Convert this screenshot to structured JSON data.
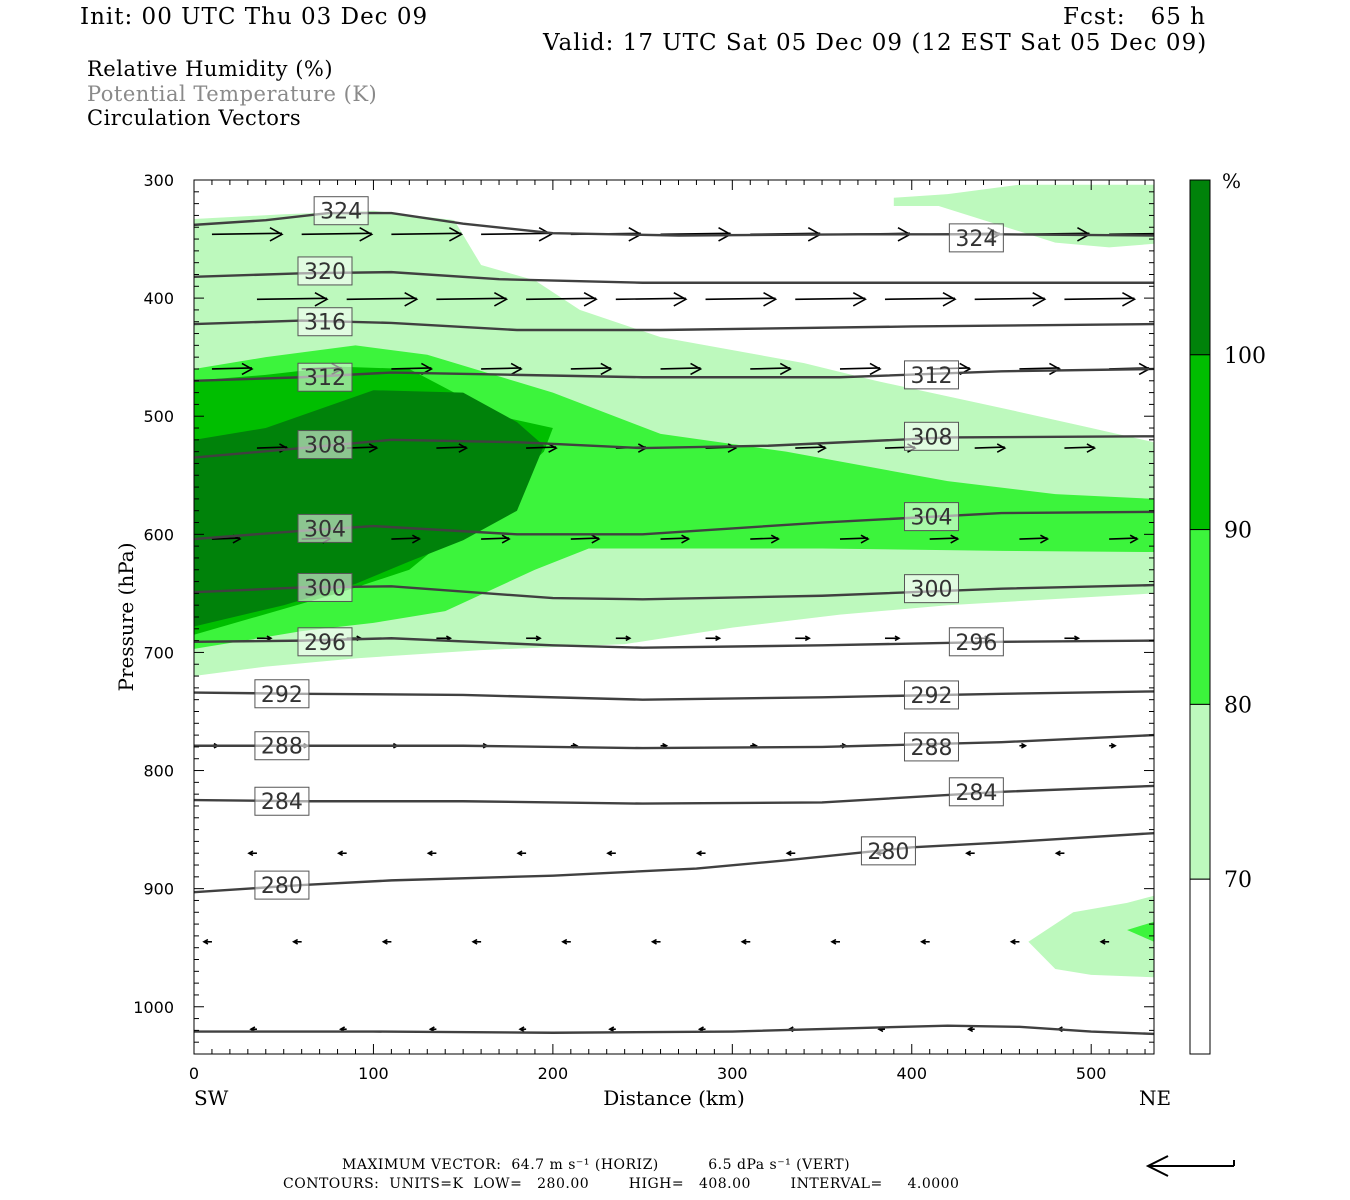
{
  "header": {
    "init": "Init: 00 UTC Thu 03 Dec 09",
    "fcst": "Fcst:   65 h",
    "valid": "Valid: 17 UTC Sat 05 Dec 09 (12 EST Sat 05 Dec 09)"
  },
  "legend_lines": {
    "rh": "Relative Humidity (%)",
    "theta": "Potential Temperature (K)",
    "vectors": "Circulation Vectors"
  },
  "colors": {
    "rh70": "#bdf9bd",
    "rh80": "#3cf43c",
    "rh90": "#00be00",
    "rh100": "#00820a",
    "contour": "#404040",
    "theta_text": "#8a8a8a"
  },
  "footer": {
    "max_vector": "MAXIMUM VECTOR:  64.7 m s⁻¹ (HORIZ)          6.5 dPa s⁻¹ (VERT)",
    "contours": "CONTOURS:  UNITS=K  LOW=   280.00        HIGH=   408.00        INTERVAL=     4.0000"
  },
  "chart_data": {
    "type": "cross-section",
    "xlabel": "Distance (km)",
    "ylabel": "Pressure (hPa)",
    "x_ticks": [
      0,
      100,
      200,
      300,
      400,
      500
    ],
    "xlim": [
      0,
      535
    ],
    "y_ticks": [
      300,
      400,
      500,
      600,
      700,
      800,
      900,
      1000
    ],
    "ylim": [
      1040,
      300
    ],
    "x_end_labels": {
      "left": "SW",
      "right": "NE"
    },
    "colorbar": {
      "unit": "%",
      "levels": [
        70,
        80,
        90,
        100
      ]
    },
    "theta_contours": [
      {
        "label": "324",
        "points": [
          [
            0,
            338
          ],
          [
            40,
            334
          ],
          [
            75,
            328
          ],
          [
            110,
            328
          ],
          [
            150,
            337
          ],
          [
            200,
            345
          ],
          [
            270,
            347
          ],
          [
            370,
            346
          ],
          [
            450,
            346
          ],
          [
            535,
            347
          ]
        ],
        "label_at": [
          [
            82,
            326
          ],
          [
            436,
            349
          ]
        ]
      },
      {
        "label": "320",
        "points": [
          [
            0,
            382
          ],
          [
            60,
            379
          ],
          [
            110,
            378
          ],
          [
            170,
            384
          ],
          [
            250,
            387
          ],
          [
            380,
            387
          ],
          [
            535,
            387
          ]
        ],
        "label_at": [
          [
            73,
            377
          ]
        ]
      },
      {
        "label": "316",
        "points": [
          [
            0,
            422
          ],
          [
            60,
            419
          ],
          [
            110,
            421
          ],
          [
            180,
            427
          ],
          [
            260,
            427
          ],
          [
            400,
            424
          ],
          [
            535,
            422
          ]
        ],
        "label_at": [
          [
            73,
            420
          ]
        ]
      },
      {
        "label": "312",
        "points": [
          [
            0,
            470
          ],
          [
            60,
            467
          ],
          [
            110,
            463
          ],
          [
            180,
            465
          ],
          [
            250,
            467
          ],
          [
            360,
            467
          ],
          [
            450,
            462
          ],
          [
            535,
            460
          ]
        ],
        "label_at": [
          [
            73,
            467
          ],
          [
            411,
            465
          ]
        ]
      },
      {
        "label": "308",
        "points": [
          [
            0,
            535
          ],
          [
            60,
            527
          ],
          [
            110,
            520
          ],
          [
            180,
            522
          ],
          [
            250,
            527
          ],
          [
            320,
            525
          ],
          [
            420,
            518
          ],
          [
            535,
            517
          ]
        ],
        "label_at": [
          [
            73,
            524
          ],
          [
            411,
            517
          ]
        ]
      },
      {
        "label": "304",
        "points": [
          [
            0,
            604
          ],
          [
            60,
            597
          ],
          [
            100,
            593
          ],
          [
            180,
            600
          ],
          [
            250,
            600
          ],
          [
            350,
            590
          ],
          [
            450,
            582
          ],
          [
            535,
            581
          ]
        ],
        "label_at": [
          [
            73,
            595
          ],
          [
            411,
            585
          ]
        ]
      },
      {
        "label": "300",
        "points": [
          [
            0,
            649
          ],
          [
            60,
            645
          ],
          [
            110,
            644
          ],
          [
            200,
            654
          ],
          [
            250,
            655
          ],
          [
            350,
            652
          ],
          [
            450,
            646
          ],
          [
            535,
            643
          ]
        ],
        "label_at": [
          [
            73,
            645
          ],
          [
            411,
            646
          ]
        ]
      },
      {
        "label": "296",
        "points": [
          [
            0,
            691
          ],
          [
            60,
            690
          ],
          [
            110,
            688
          ],
          [
            200,
            694
          ],
          [
            250,
            696
          ],
          [
            350,
            694
          ],
          [
            450,
            691
          ],
          [
            535,
            690
          ]
        ],
        "label_at": [
          [
            73,
            691
          ],
          [
            436,
            691
          ]
        ]
      },
      {
        "label": "292",
        "points": [
          [
            0,
            734
          ],
          [
            60,
            735
          ],
          [
            150,
            736
          ],
          [
            250,
            740
          ],
          [
            350,
            738
          ],
          [
            450,
            735
          ],
          [
            535,
            733
          ]
        ],
        "label_at": [
          [
            49,
            735
          ],
          [
            411,
            736
          ]
        ]
      },
      {
        "label": "288",
        "points": [
          [
            0,
            779
          ],
          [
            60,
            779
          ],
          [
            150,
            779
          ],
          [
            250,
            781
          ],
          [
            350,
            780
          ],
          [
            450,
            776
          ],
          [
            535,
            770
          ]
        ],
        "label_at": [
          [
            49,
            779
          ],
          [
            411,
            780
          ]
        ]
      },
      {
        "label": "284",
        "points": [
          [
            0,
            825
          ],
          [
            60,
            826
          ],
          [
            150,
            826
          ],
          [
            250,
            828
          ],
          [
            350,
            827
          ],
          [
            450,
            818
          ],
          [
            535,
            813
          ]
        ],
        "label_at": [
          [
            49,
            826
          ],
          [
            436,
            818
          ]
        ]
      },
      {
        "label": "280",
        "points": [
          [
            0,
            903
          ],
          [
            60,
            897
          ],
          [
            110,
            893
          ],
          [
            200,
            889
          ],
          [
            280,
            883
          ],
          [
            330,
            876
          ],
          [
            400,
            865
          ],
          [
            450,
            861
          ],
          [
            535,
            853
          ]
        ],
        "label_at": [
          [
            49,
            897
          ],
          [
            387,
            868
          ]
        ]
      },
      {
        "label": "",
        "points": [
          [
            0,
            1021
          ],
          [
            100,
            1021
          ],
          [
            200,
            1022
          ],
          [
            300,
            1021
          ],
          [
            370,
            1018
          ],
          [
            420,
            1016
          ],
          [
            460,
            1017
          ],
          [
            500,
            1021
          ],
          [
            535,
            1023
          ]
        ],
        "label_at": []
      }
    ],
    "rh_regions": [
      {
        "level": 70,
        "points": [
          [
            0,
            333
          ],
          [
            50,
            329
          ],
          [
            100,
            326
          ],
          [
            145,
            334
          ],
          [
            160,
            372
          ],
          [
            190,
            385
          ],
          [
            215,
            410
          ],
          [
            260,
            433
          ],
          [
            340,
            455
          ],
          [
            380,
            470
          ],
          [
            450,
            493
          ],
          [
            500,
            510
          ],
          [
            535,
            522
          ],
          [
            535,
            650
          ],
          [
            420,
            660
          ],
          [
            360,
            668
          ],
          [
            300,
            679
          ],
          [
            240,
            693
          ],
          [
            160,
            698
          ],
          [
            90,
            705
          ],
          [
            40,
            712
          ],
          [
            0,
            720
          ]
        ]
      },
      {
        "level": 70,
        "points": [
          [
            390,
            315
          ],
          [
            390,
            322
          ],
          [
            415,
            322
          ],
          [
            480,
            353
          ],
          [
            510,
            357
          ],
          [
            535,
            354
          ],
          [
            535,
            304
          ],
          [
            460,
            304
          ],
          [
            420,
            312
          ]
        ]
      },
      {
        "level": 70,
        "points": [
          [
            465,
            945
          ],
          [
            490,
            920
          ],
          [
            520,
            912
          ],
          [
            535,
            906
          ],
          [
            535,
            975
          ],
          [
            500,
            973
          ],
          [
            480,
            968
          ]
        ]
      },
      {
        "level": 80,
        "points": [
          [
            0,
            460
          ],
          [
            40,
            450
          ],
          [
            90,
            440
          ],
          [
            130,
            448
          ],
          [
            200,
            480
          ],
          [
            260,
            515
          ],
          [
            330,
            530
          ],
          [
            420,
            555
          ],
          [
            480,
            566
          ],
          [
            535,
            570
          ],
          [
            535,
            615
          ],
          [
            450,
            614
          ],
          [
            350,
            612
          ],
          [
            220,
            612
          ],
          [
            190,
            630
          ],
          [
            140,
            665
          ],
          [
            100,
            675
          ],
          [
            60,
            682
          ],
          [
            0,
            697
          ]
        ]
      },
      {
        "level": 80,
        "points": [
          [
            520,
            935
          ],
          [
            535,
            928
          ],
          [
            535,
            945
          ]
        ]
      },
      {
        "level": 90,
        "points": [
          [
            0,
            470
          ],
          [
            40,
            465
          ],
          [
            80,
            458
          ],
          [
            120,
            460
          ],
          [
            170,
            500
          ],
          [
            200,
            510
          ],
          [
            195,
            530
          ],
          [
            160,
            580
          ],
          [
            120,
            630
          ],
          [
            80,
            650
          ],
          [
            0,
            685
          ]
        ]
      },
      {
        "level": 100,
        "points": [
          [
            0,
            520
          ],
          [
            40,
            510
          ],
          [
            100,
            478
          ],
          [
            150,
            480
          ],
          [
            180,
            505
          ],
          [
            195,
            525
          ],
          [
            180,
            580
          ],
          [
            150,
            605
          ],
          [
            120,
            623
          ],
          [
            90,
            642
          ],
          [
            50,
            660
          ],
          [
            0,
            678
          ]
        ]
      }
    ]
  }
}
